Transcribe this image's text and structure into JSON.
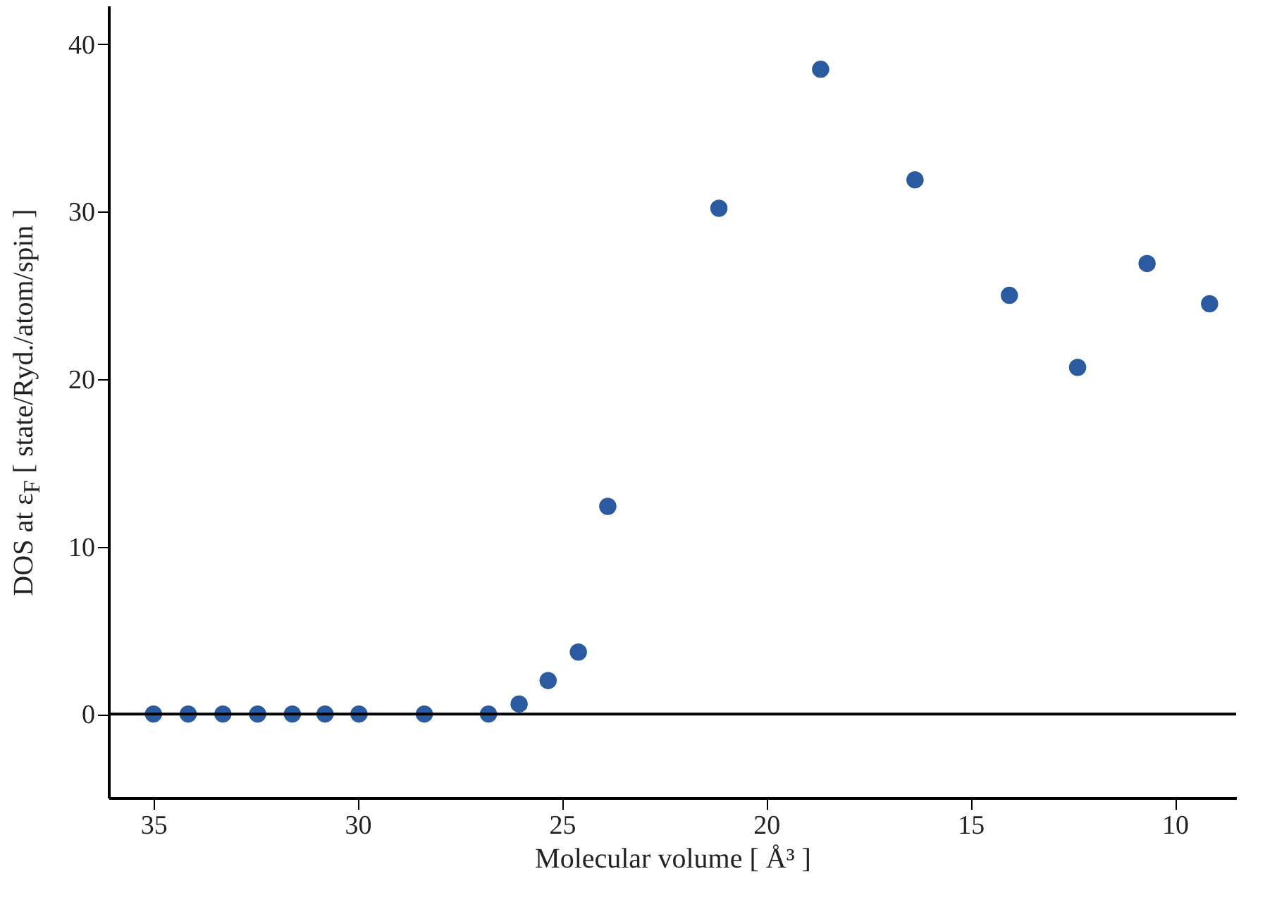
{
  "chart_data": {
    "type": "scatter",
    "xlabel": "Molecular volume [ Å³ ]",
    "ylabel": "DOS at ε$_{F}$ [ state/Ryd./atom/spin ]",
    "x": [
      35,
      34.15,
      33.3,
      32.45,
      31.6,
      30.8,
      29.97,
      28.37,
      26.8,
      26.05,
      25.34,
      24.6,
      23.88,
      21.16,
      18.67,
      16.36,
      14.05,
      12.38,
      10.68,
      9.15
    ],
    "series": [
      {
        "color": "#2a5aa0",
        "values": [
          0,
          0,
          0,
          0,
          0,
          0,
          0,
          0,
          0,
          0.6,
          2.0,
          3.7,
          12.4,
          30.2,
          38.5,
          31.9,
          25.0,
          20.7,
          26.9,
          24.5
        ]
      }
    ],
    "xlim": [
      36.1,
      8.5
    ],
    "xticks": [
      35,
      30,
      25,
      20,
      15,
      10
    ],
    "ylim": [
      -5,
      42.3
    ],
    "yticks": [
      0,
      10,
      20,
      30,
      40
    ],
    "ref_lines": [
      {
        "axis": "y",
        "value": 0,
        "color": "#000000"
      }
    ],
    "marker": "circle",
    "grid": false,
    "legend": false
  }
}
